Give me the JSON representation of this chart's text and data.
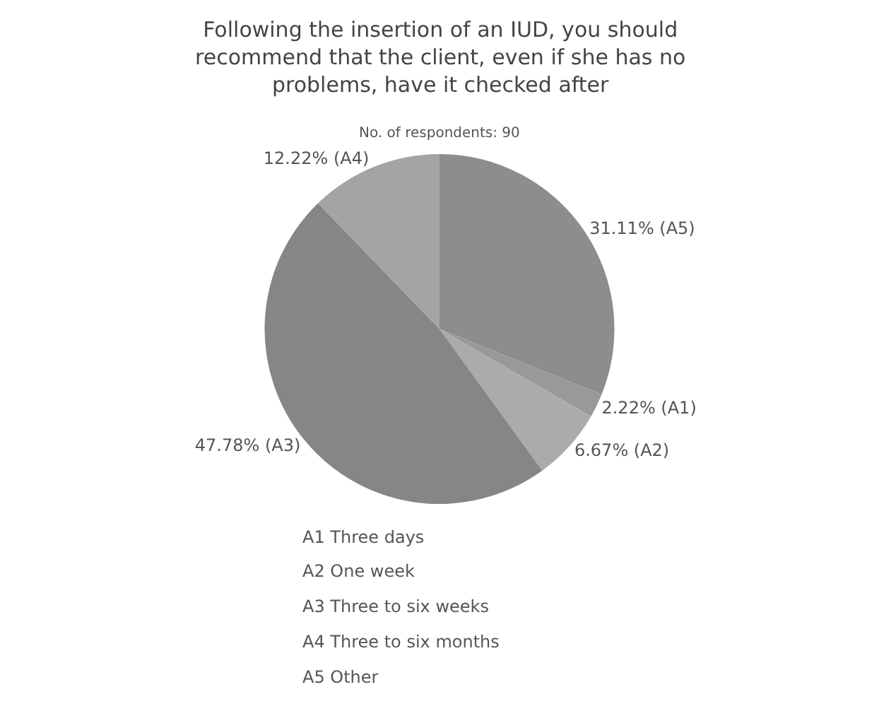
{
  "chart_data": {
    "type": "pie",
    "title": "Following the insertion of an IUD, you should recommend that the client, even if she has no problems, have it checked after",
    "subtitle": "No. of respondents: 90",
    "categories": [
      "(A5)",
      "(A1)",
      "(A2)",
      "(A3)",
      "(A4)"
    ],
    "values": [
      31.11,
      2.22,
      6.67,
      47.78,
      12.22
    ],
    "colors": [
      "#8b8d8f",
      "#97999b",
      "#a9abad",
      "#848688",
      "#a2a4a6"
    ],
    "value_labels": [
      "31.11%",
      "2.22%",
      "6.67%",
      "47.78%",
      "12.22%"
    ],
    "annotations": [
      "A1 Three days",
      "A2 One week",
      "A3 Three to six weeks",
      "A4 Three to six months",
      "A5 Other"
    ],
    "legend": false
  }
}
